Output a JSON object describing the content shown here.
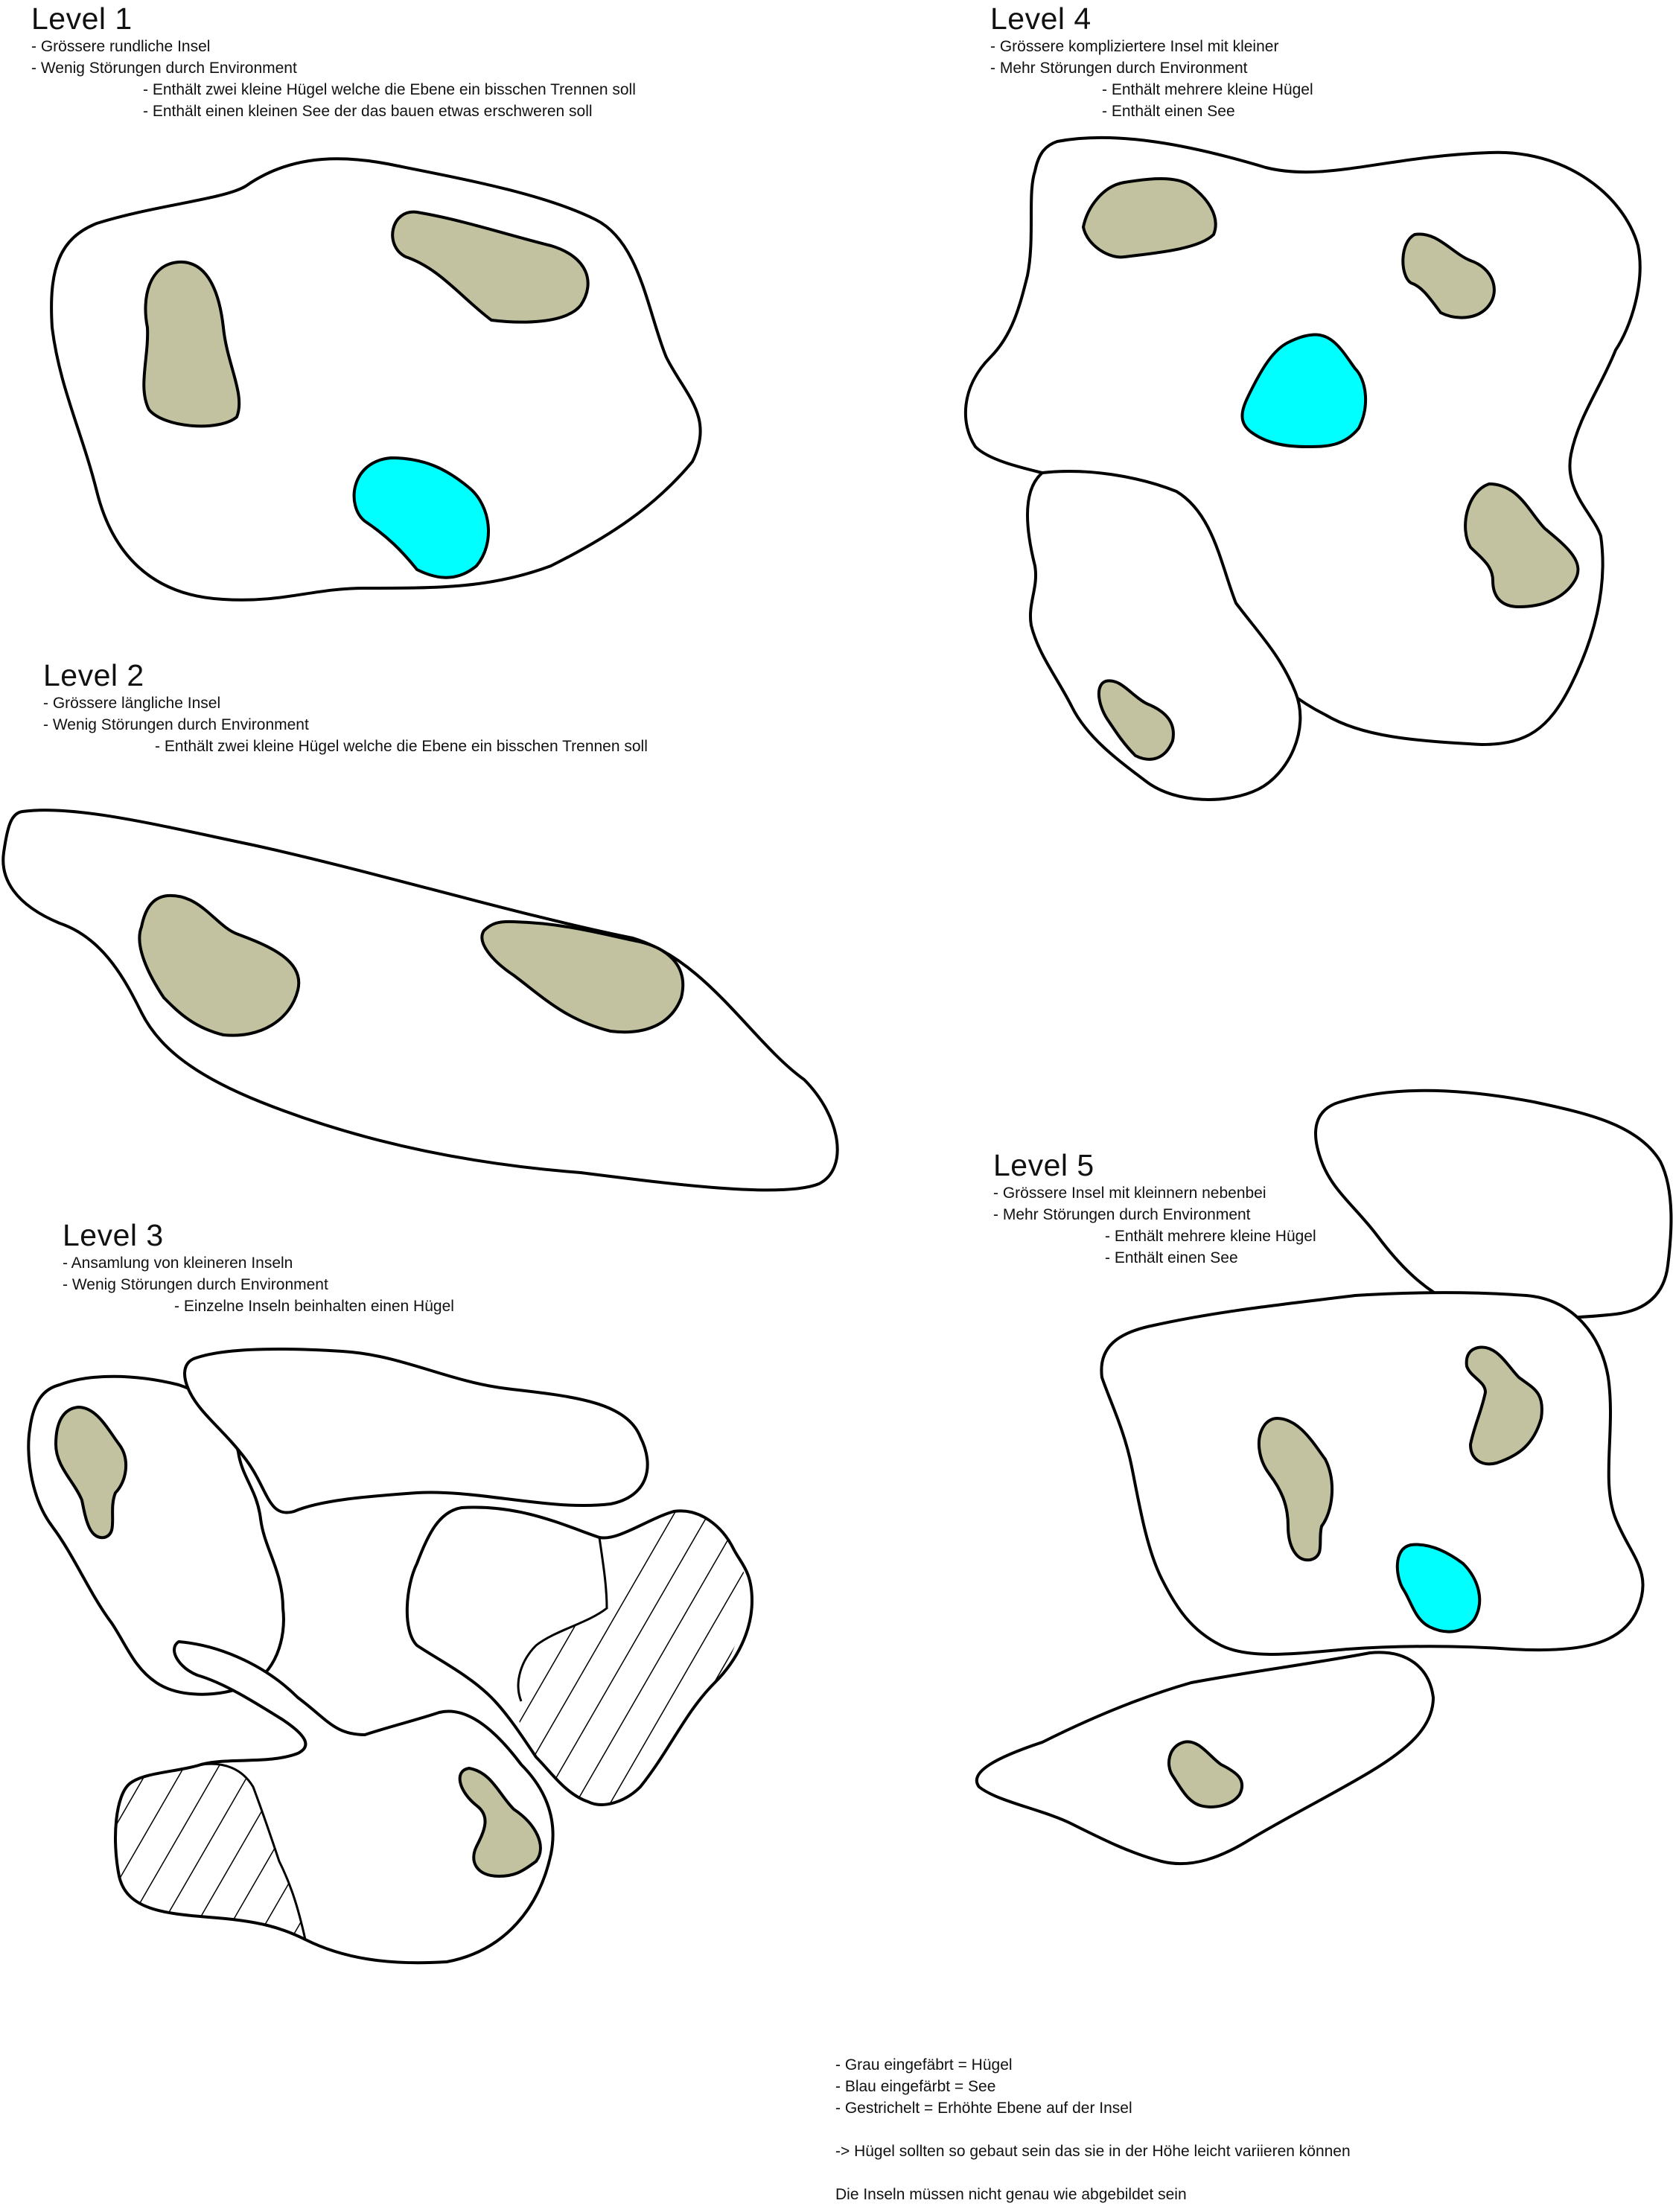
{
  "levels": [
    {
      "title": "Level 1",
      "lines": [
        "- Grössere rundliche Insel",
        "- Wenig Störungen durch Environment",
        "- Enthält zwei kleine Hügel welche die Ebene ein bisschen Trennen soll",
        "- Enthält einen kleinen See der das bauen etwas erschweren soll"
      ]
    },
    {
      "title": "Level 2",
      "lines": [
        "- Grössere längliche Insel",
        "- Wenig Störungen durch Environment",
        "- Enthält zwei kleine Hügel welche die Ebene ein bisschen Trennen soll"
      ]
    },
    {
      "title": "Level 3",
      "lines": [
        "- Ansamlung von kleineren Inseln",
        "- Wenig Störungen durch Environment",
        "- Einzelne Inseln beinhalten einen Hügel"
      ]
    },
    {
      "title": "Level 4",
      "lines": [
        "- Grössere kompliziertere Insel mit kleiner",
        "- Mehr Störungen durch Environment",
        "- Enthält mehrere kleine Hügel",
        "- Enthält einen See"
      ]
    },
    {
      "title": "Level 5",
      "lines": [
        "- Grössere Insel mit kleinnern nebenbei",
        "- Mehr Störungen durch Environment",
        "- Enthält mehrere kleine Hügel",
        "- Enthält einen See"
      ]
    }
  ],
  "legend": {
    "lines": [
      "- Grau eingefäbrt = Hügel",
      "- Blau eingefärbt = See",
      "- Gestrichelt = Erhöhte Ebene auf der Insel"
    ],
    "note": "-> Hügel sollten so gebaut sein das sie in der Höhe leicht variieren können",
    "footer": "Die Inseln müssen nicht genau wie abgebildet sein"
  },
  "colors": {
    "hill": "#c2c2a0",
    "lake": "#00ffff",
    "island": "#ffffff",
    "outline": "#000000"
  }
}
